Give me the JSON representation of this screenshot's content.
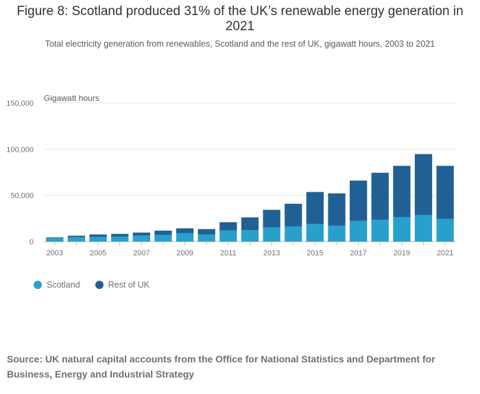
{
  "header": {
    "title": "Figure 8: Scotland produced 31% of the UK’s renewable energy generation in 2021",
    "subtitle": "Total electricity generation from renewables, Scotland and the rest of UK, gigawatt hours, 2003 to 2021"
  },
  "legend": {
    "items": [
      {
        "label": "Scotland",
        "color": "#27a0cc"
      },
      {
        "label": "Rest of UK",
        "color": "#206095"
      }
    ]
  },
  "footer": {
    "source": "Source: UK natural capital accounts from the Office for National Statistics and Department for Business, Energy and Industrial Strategy"
  },
  "chart_data": {
    "type": "bar",
    "stacked": true,
    "categories": [
      "2003",
      "2004",
      "2005",
      "2006",
      "2007",
      "2008",
      "2009",
      "2010",
      "2011",
      "2012",
      "2013",
      "2014",
      "2015",
      "2016",
      "2017",
      "2018",
      "2019",
      "2020",
      "2021"
    ],
    "series": [
      {
        "name": "Scotland",
        "color": "#27a0cc",
        "values": [
          3500,
          4700,
          5200,
          5400,
          6600,
          7400,
          9200,
          7700,
          12000,
          12400,
          15300,
          16400,
          19300,
          17200,
          22400,
          23800,
          26700,
          28700,
          24600
        ]
      },
      {
        "name": "Rest of UK",
        "color": "#206095",
        "values": [
          1000,
          1700,
          2600,
          3000,
          3200,
          4500,
          5200,
          5900,
          9000,
          13800,
          19100,
          24600,
          34400,
          35000,
          43600,
          50700,
          55300,
          66000,
          57400
        ]
      }
    ],
    "ylabel": "Gigawatt hours",
    "ylim": [
      0,
      150000
    ],
    "yticks": [
      0,
      50000,
      100000,
      150000
    ],
    "ytick_labels": [
      "0",
      "50,000",
      "100,000",
      "150,000"
    ],
    "xtick_labels": [
      "2003",
      "2005",
      "2007",
      "2009",
      "2011",
      "2013",
      "2015",
      "2017",
      "2019",
      "2021"
    ],
    "grid": true,
    "legend_position": "bottom-left"
  }
}
